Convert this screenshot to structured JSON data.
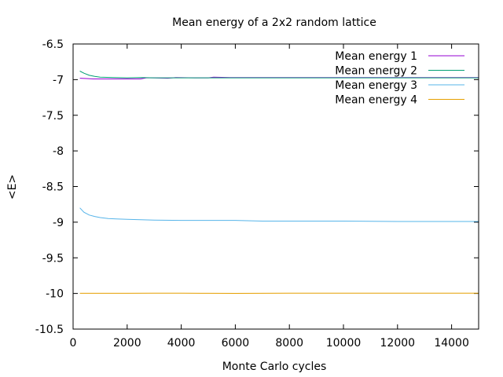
{
  "chart_data": {
    "type": "line",
    "title": "Mean energy of a 2x2 random lattice",
    "xlabel": "Monte Carlo cycles",
    "ylabel": "<E>",
    "xlim": [
      0,
      15000
    ],
    "ylim": [
      -10.5,
      -6.5
    ],
    "xticks": [
      0,
      2000,
      4000,
      6000,
      8000,
      10000,
      12000,
      14000
    ],
    "xtick_labels": [
      "0",
      "2000",
      "4000",
      "6000",
      "8000",
      "10000",
      "12000",
      "14000"
    ],
    "yticks": [
      -10.5,
      -10,
      -9.5,
      -9,
      -8.5,
      -8,
      -7.5,
      -7,
      -6.5
    ],
    "ytick_labels": [
      "-10.5",
      "-10",
      "-9.5",
      "-9",
      "-8.5",
      "-8",
      "-7.5",
      "-7",
      "-6.5"
    ],
    "grid": false,
    "legend_position": "top-right",
    "series": [
      {
        "name": "Mean energy 1",
        "color": "#9400d3",
        "x": [
          250,
          500,
          750,
          1000,
          1500,
          2000,
          2500,
          2700,
          3000,
          3500,
          3800,
          4500,
          5000,
          5200,
          5800,
          6500,
          8000,
          10000,
          10500,
          12000,
          15000
        ],
        "y": [
          -6.98,
          -6.985,
          -6.99,
          -6.99,
          -6.99,
          -6.99,
          -6.99,
          -6.975,
          -6.975,
          -6.98,
          -6.97,
          -6.975,
          -6.975,
          -6.965,
          -6.97,
          -6.97,
          -6.97,
          -6.97,
          -6.97,
          -6.97,
          -6.97
        ]
      },
      {
        "name": "Mean energy 2",
        "color": "#009e73",
        "x": [
          250,
          400,
          600,
          800,
          1000,
          1500,
          2000,
          2500,
          3000,
          3500,
          4000,
          6000,
          8000,
          10000,
          12000,
          15000
        ],
        "y": [
          -6.88,
          -6.91,
          -6.94,
          -6.955,
          -6.965,
          -6.97,
          -6.975,
          -6.97,
          -6.975,
          -6.975,
          -6.975,
          -6.975,
          -6.975,
          -6.975,
          -6.975,
          -6.975
        ]
      },
      {
        "name": "Mean energy 3",
        "color": "#56b4e9",
        "x": [
          250,
          400,
          600,
          800,
          1000,
          1300,
          1600,
          2000,
          2500,
          3000,
          4000,
          6000,
          7000,
          8000,
          9000,
          10000,
          12000,
          15000
        ],
        "y": [
          -8.8,
          -8.86,
          -8.9,
          -8.92,
          -8.935,
          -8.95,
          -8.955,
          -8.96,
          -8.965,
          -8.97,
          -8.975,
          -8.975,
          -8.985,
          -8.985,
          -8.985,
          -8.985,
          -8.99,
          -8.99
        ]
      },
      {
        "name": "Mean energy 4",
        "color": "#e69f00",
        "x": [
          250,
          1000,
          2000,
          3000,
          4000,
          5000,
          6000,
          7000,
          8000,
          10000,
          12000,
          15000
        ],
        "y": [
          -9.998,
          -9.998,
          -9.998,
          -9.995,
          -9.995,
          -9.997,
          -9.999,
          -9.998,
          -9.995,
          -9.995,
          -9.995,
          -9.995
        ]
      }
    ]
  }
}
